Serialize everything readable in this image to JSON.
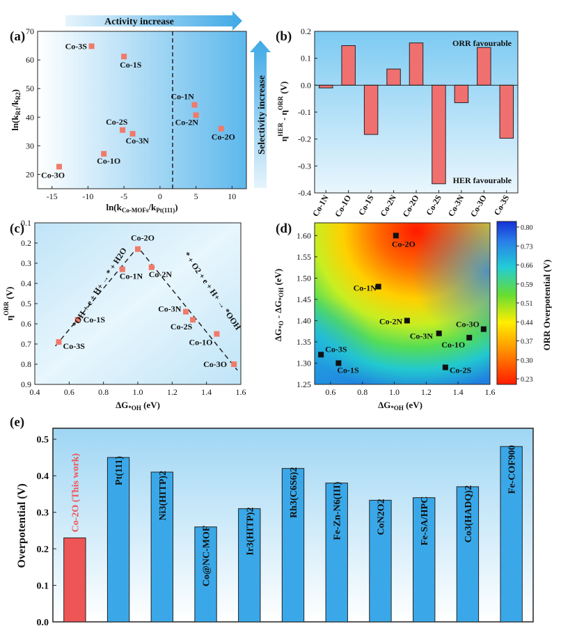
{
  "chart_data": [
    {
      "panel": "(a)",
      "type": "scatter",
      "xlabel": "ln(kCo-MOFs/kPt(111))",
      "ylabel": "ln(kR1/kR2)",
      "xlim": [
        -17,
        12
      ],
      "ylim": [
        15,
        70
      ],
      "xticks": [
        -15,
        -10,
        -5,
        0,
        5,
        10
      ],
      "yticks": [
        20,
        30,
        40,
        50,
        60,
        70
      ],
      "top_arrow": "Activity increase",
      "side_arrow": "Selectivity increase",
      "points": [
        {
          "label": "Co-3S",
          "x": -9.5,
          "y": 64.8
        },
        {
          "label": "Co-1S",
          "x": -5.0,
          "y": 61.2
        },
        {
          "label": "Co-1N",
          "x": 4.8,
          "y": 44.3
        },
        {
          "label": "Co-2N",
          "x": 5.0,
          "y": 40.7
        },
        {
          "label": "Co-2O",
          "x": 8.5,
          "y": 36.0
        },
        {
          "label": "Co-2S",
          "x": -5.2,
          "y": 35.5
        },
        {
          "label": "Co-3N",
          "x": -3.8,
          "y": 34.2
        },
        {
          "label": "Co-1O",
          "x": -7.8,
          "y": 27.2
        },
        {
          "label": "Co-3O",
          "x": -14.0,
          "y": 22.7
        }
      ]
    },
    {
      "panel": "(b)",
      "type": "bar",
      "ylabel": "ηHER - ηORR (V)",
      "ylim": [
        -0.4,
        0.2
      ],
      "yticks": [
        -0.4,
        -0.3,
        -0.2,
        -0.1,
        0.0,
        0.1,
        0.2
      ],
      "categories": [
        "Co-1N",
        "Co-1O",
        "Co-1S",
        "Co-2N",
        "Co-2O",
        "Co-2S",
        "Co-3N",
        "Co-3O",
        "Co-3S"
      ],
      "values": [
        -0.01,
        0.147,
        -0.183,
        0.06,
        0.157,
        -0.366,
        -0.065,
        0.14,
        -0.197
      ],
      "top_note": "ORR favourable",
      "bottom_note": "HER favourable",
      "bar_color": "#f07070"
    },
    {
      "panel": "(c)",
      "type": "scatter",
      "xlabel": "ΔG*OH (eV)",
      "ylabel": "ηORR (V)",
      "xlim": [
        0.4,
        1.6
      ],
      "ylim": [
        0.9,
        0.1
      ],
      "xticks": [
        0.4,
        0.6,
        0.8,
        1.0,
        1.2,
        1.4,
        1.6
      ],
      "yticks": [
        0.1,
        0.2,
        0.3,
        0.4,
        0.5,
        0.6,
        0.7,
        0.8,
        0.9
      ],
      "left_line_label": "*OH + e + H+ → * + H2O",
      "right_line_label": "* + O2 + e + H+ → *OOH",
      "points": [
        {
          "label": "Co-2O",
          "x": 1.0,
          "y": 0.23
        },
        {
          "label": "Co-1N",
          "x": 0.91,
          "y": 0.33
        },
        {
          "label": "Co-2N",
          "x": 1.08,
          "y": 0.32
        },
        {
          "label": "Co-1S",
          "x": 0.65,
          "y": 0.58
        },
        {
          "label": "Co-3S",
          "x": 0.54,
          "y": 0.69
        },
        {
          "label": "Co-3N",
          "x": 1.28,
          "y": 0.54
        },
        {
          "label": "Co-2S",
          "x": 1.32,
          "y": 0.58
        },
        {
          "label": "Co-1O",
          "x": 1.46,
          "y": 0.65
        },
        {
          "label": "Co-3O",
          "x": 1.56,
          "y": 0.8
        }
      ]
    },
    {
      "panel": "(d)",
      "type": "heatmap",
      "xlabel": "ΔG*OH (eV)",
      "ylabel": "ΔG*O - ΔG*OH (eV)",
      "xlim": [
        0.5,
        1.6
      ],
      "ylim": [
        1.25,
        1.63
      ],
      "xticks": [
        0.6,
        0.8,
        1.0,
        1.2,
        1.4,
        1.6
      ],
      "yticks": [
        1.25,
        1.3,
        1.35,
        1.4,
        1.45,
        1.5,
        1.55,
        1.6
      ],
      "colorbar_label": "ORR Overpotential (V)",
      "colorbar_ticks": [
        "0.80",
        "0.73",
        "0.66",
        "0.59",
        "0.51",
        "0.44",
        "0.37",
        "0.30",
        "0.23"
      ],
      "colorbar_range": [
        0.23,
        0.8
      ],
      "points": [
        {
          "label": "Co-2O",
          "x": 1.01,
          "y": 1.6
        },
        {
          "label": "Co-1N",
          "x": 0.9,
          "y": 1.48
        },
        {
          "label": "Co-2N",
          "x": 1.08,
          "y": 1.4
        },
        {
          "label": "Co-3N",
          "x": 1.28,
          "y": 1.37
        },
        {
          "label": "Co-3O",
          "x": 1.56,
          "y": 1.38
        },
        {
          "label": "Co-1O",
          "x": 1.47,
          "y": 1.36
        },
        {
          "label": "Co-3S",
          "x": 0.54,
          "y": 1.32
        },
        {
          "label": "Co-1S",
          "x": 0.65,
          "y": 1.3
        },
        {
          "label": "Co-2S",
          "x": 1.32,
          "y": 1.29
        }
      ]
    },
    {
      "panel": "(e)",
      "type": "bar",
      "ylabel": "Overpotential (V)",
      "ylim": [
        0.0,
        0.5
      ],
      "yticks": [
        0.0,
        0.1,
        0.2,
        0.3,
        0.4,
        0.5
      ],
      "categories": [
        "Co-2O (This work)",
        "Pt(111)",
        "Ni3(HITP)2",
        "Co@NC-MOF",
        "Ir3(HITP)2",
        "Rh3(C6S6)2",
        "Fe-Zn-N6(III)",
        "CoN2O2",
        "Fe-SA/HPC",
        "Co3(HADQ)2",
        "Fe-COF900"
      ],
      "values": [
        0.23,
        0.45,
        0.41,
        0.26,
        0.31,
        0.42,
        0.38,
        0.333,
        0.34,
        0.37,
        0.48
      ],
      "highlight_color": "#ee5555",
      "bar_color": "#3aa8e8"
    }
  ]
}
